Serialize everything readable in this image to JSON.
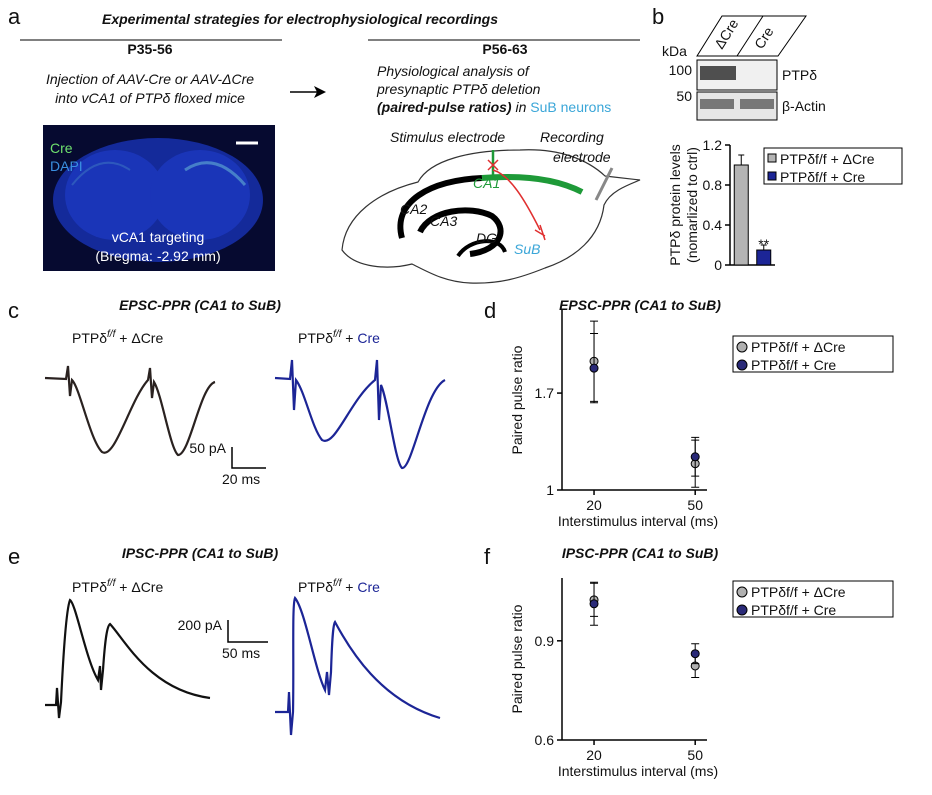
{
  "panel_a": {
    "letter": "a",
    "title": "Experimental strategies for electrophysiological recordings",
    "left": {
      "heading": "P35-56",
      "lines": [
        "Injection of AAV-Cre or AAV-ΔCre",
        "into vCA1 of PTPδ floxed mice"
      ]
    },
    "image": {
      "channels": [
        "Cre",
        "DAPI"
      ],
      "caption": [
        "vCA1 targeting",
        "(Bregma: -2.92 mm)"
      ]
    },
    "right": {
      "heading": "P56-63",
      "lines": [
        "Physiological analysis of",
        "presynaptic PTPδ deletion"
      ],
      "line3": {
        "bold": "(paired-pulse ratios)",
        "plain": " in ",
        "highlight": "SuB neurons"
      }
    },
    "diagram": {
      "stimulus": "Stimulus electrode",
      "recording": [
        "Recording",
        "electrode"
      ],
      "regions": [
        "CA1",
        "CA2",
        "CA3",
        "DG",
        "SuB"
      ]
    }
  },
  "panel_b": {
    "letter": "b",
    "blot": {
      "columns": [
        "ΔCre",
        "Cre"
      ],
      "unit": "kDa",
      "markers": [
        100,
        50
      ],
      "proteins": [
        "PTPδ",
        "β-Actin"
      ]
    }
  },
  "panel_c": {
    "letter": "c",
    "title": "EPSC-PPR (CA1 to SuB)",
    "trace_labels": [
      {
        "gene": "PTPδ",
        "sup": "f/f",
        "joiner": " + ",
        "virus": "ΔCre"
      },
      {
        "gene": "PTPδ",
        "sup": "f/f",
        "joiner": " + ",
        "virus": "Cre"
      }
    ],
    "scale_bar": {
      "amplitude": "50 pA",
      "time": "20 ms"
    }
  },
  "panel_d": {
    "letter": "d"
  },
  "panel_e": {
    "letter": "e",
    "title": "IPSC-PPR (CA1 to SuB)",
    "trace_labels": [
      {
        "gene": "PTPδ",
        "sup": "f/f",
        "joiner": " + ",
        "virus": "ΔCre"
      },
      {
        "gene": "PTPδ",
        "sup": "f/f",
        "joiner": " + ",
        "virus": "Cre"
      }
    ],
    "scale_bar": {
      "amplitude": "200 pA",
      "time": "50 ms"
    }
  },
  "panel_f": {
    "letter": "f"
  },
  "chart_data": [
    {
      "type": "bar",
      "ylabel": [
        "PTPδ protein levels",
        "(nomarlized to ctrl)"
      ],
      "categories": [
        "PTPδf/f + ΔCre",
        "PTPδf/f + Cre"
      ],
      "values": [
        1.0,
        0.15
      ],
      "errors": [
        0.1,
        0.05
      ],
      "colors": [
        "#b4b4b4",
        "#1c2596"
      ],
      "ylim": [
        0,
        1.2
      ],
      "yticks": [
        0,
        0.4,
        0.8,
        1.2
      ],
      "annotation": "**",
      "legend": "right"
    },
    {
      "type": "errorbar",
      "title": "EPSC-PPR (CA1 to SuB)",
      "xlabel": "Interstimulus interval (ms)",
      "ylabel": "Paired pulse ratio",
      "x": [
        20,
        50
      ],
      "xlim": [
        10.5,
        53.5
      ],
      "xticks": [
        20,
        50
      ],
      "ylim": [
        1,
        2.3
      ],
      "yticks": [
        1,
        1.7
      ],
      "legend": "right",
      "series": [
        {
          "name": "PTPδf/f + ΔCre",
          "color": "#b0b0b0",
          "values": [
            1.93,
            1.19
          ],
          "errors": [
            0.29,
            0.17
          ]
        },
        {
          "name": "PTPδf/f + Cre",
          "color": "#2a2a78",
          "values": [
            1.88,
            1.24
          ],
          "errors": [
            0.25,
            0.14
          ]
        }
      ]
    },
    {
      "type": "errorbar",
      "title": "IPSC-PPR (CA1 to SuB)",
      "xlabel": "Interstimulus interval (ms)",
      "ylabel": "Paired pulse ratio",
      "x": [
        20,
        50
      ],
      "xlim": [
        10.5,
        53.5
      ],
      "xticks": [
        20,
        50
      ],
      "ylim": [
        0.6,
        1.09
      ],
      "yticks": [
        0.6,
        0.9
      ],
      "legend": "right",
      "series": [
        {
          "name": "PTPδf/f + ΔCre",
          "color": "#b0b0b0",
          "values": [
            1.024,
            0.824
          ],
          "errors": [
            0.05,
            0.035
          ]
        },
        {
          "name": "PTPδf/f + Cre",
          "color": "#2a2a78",
          "values": [
            1.012,
            0.861
          ],
          "errors": [
            0.065,
            0.03
          ]
        }
      ]
    }
  ]
}
